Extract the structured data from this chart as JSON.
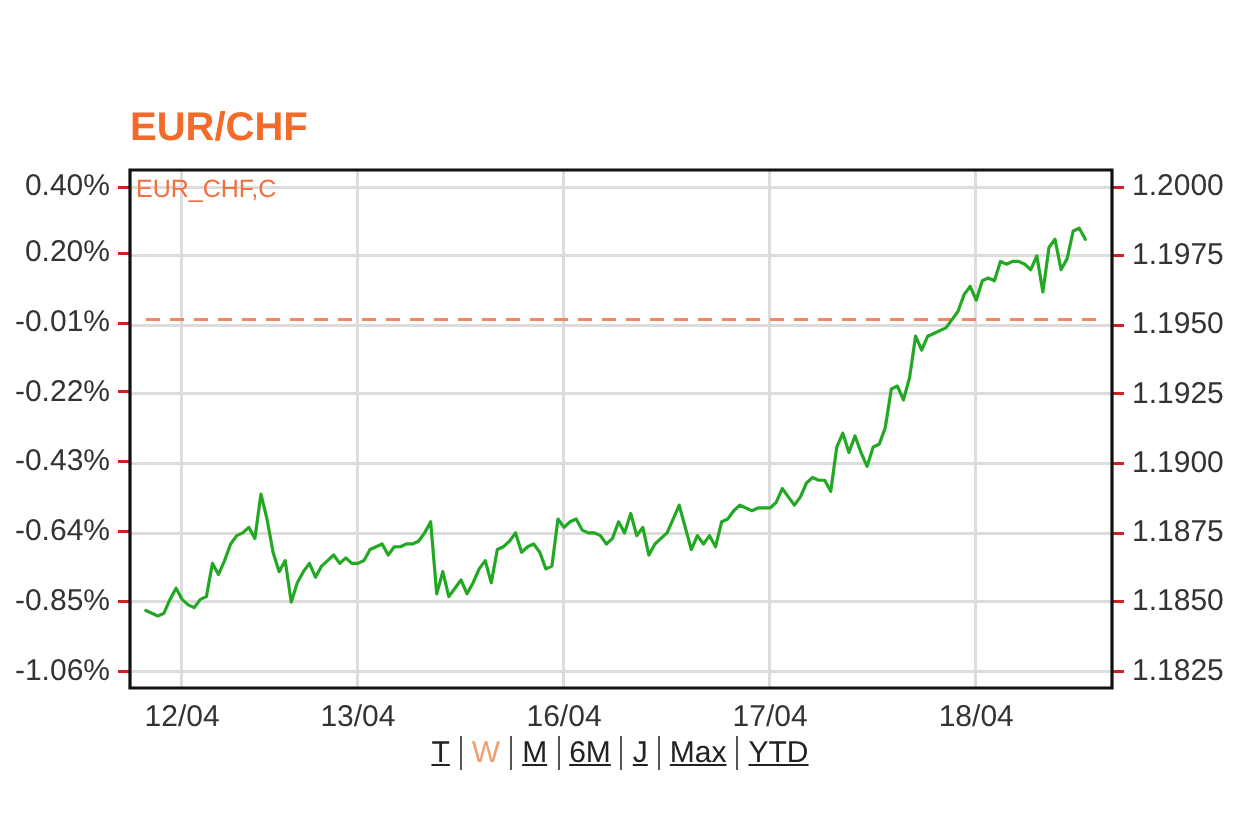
{
  "chart_data": {
    "type": "line",
    "title": "EUR/CHF",
    "annotations": [
      "EUR_CHF,C",
      "T",
      "W",
      "M",
      "6M",
      "J",
      "Max",
      "YTD"
    ],
    "categories": [
      null,
      null,
      null,
      null,
      null,
      null,
      "12/04",
      null,
      null,
      null,
      null,
      null,
      null,
      null,
      null,
      null,
      null,
      null,
      null,
      null,
      null,
      null,
      null,
      null,
      null,
      null,
      null,
      null,
      null,
      null,
      null,
      null,
      null,
      null,
      null,
      "13/04",
      null,
      null,
      null,
      null,
      null,
      null,
      null,
      null,
      null,
      null,
      null,
      null,
      null,
      null,
      null,
      null,
      null,
      null,
      null,
      null,
      null,
      null,
      null,
      null,
      null,
      null,
      null,
      null,
      null,
      null,
      null,
      null,
      null,
      "16/04",
      null,
      null,
      null,
      null,
      null,
      null,
      null,
      null,
      null,
      null,
      null,
      null,
      null,
      null,
      null,
      null,
      null,
      null,
      null,
      null,
      null,
      null,
      null,
      null,
      null,
      null,
      null,
      null,
      null,
      null,
      null,
      null,
      null,
      "17/04",
      null,
      null,
      null,
      null,
      null,
      null,
      null,
      null,
      null,
      null,
      null,
      null,
      null,
      null,
      null,
      null,
      null,
      null,
      null,
      null,
      null,
      null,
      null,
      null,
      null,
      null,
      null,
      null,
      null,
      null,
      null,
      null,
      null,
      "18/04",
      null,
      null,
      null,
      null,
      null,
      null,
      null,
      null,
      null,
      null,
      null,
      null,
      null,
      null,
      null,
      null,
      null,
      null
    ],
    "ylim": [
      -1.11,
      0.45
    ],
    "yticks": [
      {
        "value": 0.4,
        "label": "0.40%"
      },
      {
        "value": 0.2,
        "label": "0.20%"
      },
      {
        "value": -0.01,
        "label": "-0.01%"
      },
      {
        "value": -0.22,
        "label": "-0.22%"
      },
      {
        "value": -0.43,
        "label": "-0.43%"
      },
      {
        "value": -0.64,
        "label": "-0.64%"
      },
      {
        "value": -0.85,
        "label": "-0.85%"
      },
      {
        "value": -1.06,
        "label": "-1.06%"
      }
    ],
    "y2lim": [
      1.1819,
      1.2006
    ],
    "y2ticks": [
      {
        "value": 1.2,
        "label": "1.2000"
      },
      1.1975,
      {
        "value": 1.195,
        "label": "1.1950"
      },
      1.1925,
      {
        "value": 1.19,
        "label": "1.1900"
      },
      1.1875,
      {
        "value": 1.185,
        "label": "1.1850"
      },
      1.1825
    ],
    "grid": true,
    "ref_lines": [
      {
        "axis": "y",
        "value": 0,
        "color": "#f08866",
        "line_style": "dashed"
      }
    ],
    "series": [
      {
        "color": "#22a822",
        "axis": "y2",
        "values": [
          1.1847,
          1.1846,
          1.1845,
          1.1846,
          1.1851,
          1.1855,
          1.1851,
          1.1849,
          1.1848,
          1.1851,
          1.1852,
          1.1864,
          1.186,
          1.1865,
          1.1871,
          1.1874,
          1.1875,
          1.1877,
          1.1873,
          1.1889,
          1.188,
          1.1868,
          1.1861,
          1.1865,
          1.185,
          1.1857,
          1.1861,
          1.1864,
          1.1859,
          1.1863,
          1.1865,
          1.1867,
          1.1864,
          1.1866,
          1.1864,
          1.1864,
          1.1865,
          1.1869,
          1.187,
          1.1871,
          1.1867,
          1.187,
          1.187,
          1.1871,
          1.1871,
          1.1872,
          1.1875,
          1.1879,
          1.1853,
          1.1861,
          1.1852,
          1.1855,
          1.1858,
          1.1853,
          1.1857,
          1.1862,
          1.1865,
          1.1857,
          1.1869,
          1.187,
          1.1872,
          1.1875,
          1.1868,
          1.187,
          1.1871,
          1.1868,
          1.1862,
          1.1863,
          1.188,
          1.1877,
          1.1879,
          1.188,
          1.1876,
          1.1875,
          1.1875,
          1.1874,
          1.1871,
          1.1873,
          1.1879,
          1.1875,
          1.1882,
          1.1874,
          1.1877,
          1.1867,
          1.1871,
          1.1873,
          1.1875,
          1.188,
          1.1885,
          1.1877,
          1.1869,
          1.1874,
          1.1871,
          1.1874,
          1.187,
          1.1879,
          1.188,
          1.1883,
          1.1885,
          1.1884,
          1.1883,
          1.1884,
          1.1884,
          1.1884,
          1.1886,
          1.1891,
          1.1888,
          1.1885,
          1.1888,
          1.1893,
          1.1895,
          1.1894,
          1.1894,
          1.189,
          1.1906,
          1.1911,
          1.1904,
          1.191,
          1.1904,
          1.1899,
          1.1906,
          1.1907,
          1.1913,
          1.1927,
          1.1928,
          1.1923,
          1.1931,
          1.1946,
          1.1941,
          1.1946,
          1.1947,
          1.1948,
          1.1949,
          1.1952,
          1.1955,
          1.1961,
          1.1964,
          1.1959,
          1.1966,
          1.1967,
          1.1966,
          1.1973,
          1.1972,
          1.1973,
          1.1973,
          1.1972,
          1.197,
          1.1975,
          1.1962,
          1.1978,
          1.1981,
          1.197,
          1.1974,
          1.1984,
          1.1985,
          1.1981
        ]
      }
    ]
  }
}
